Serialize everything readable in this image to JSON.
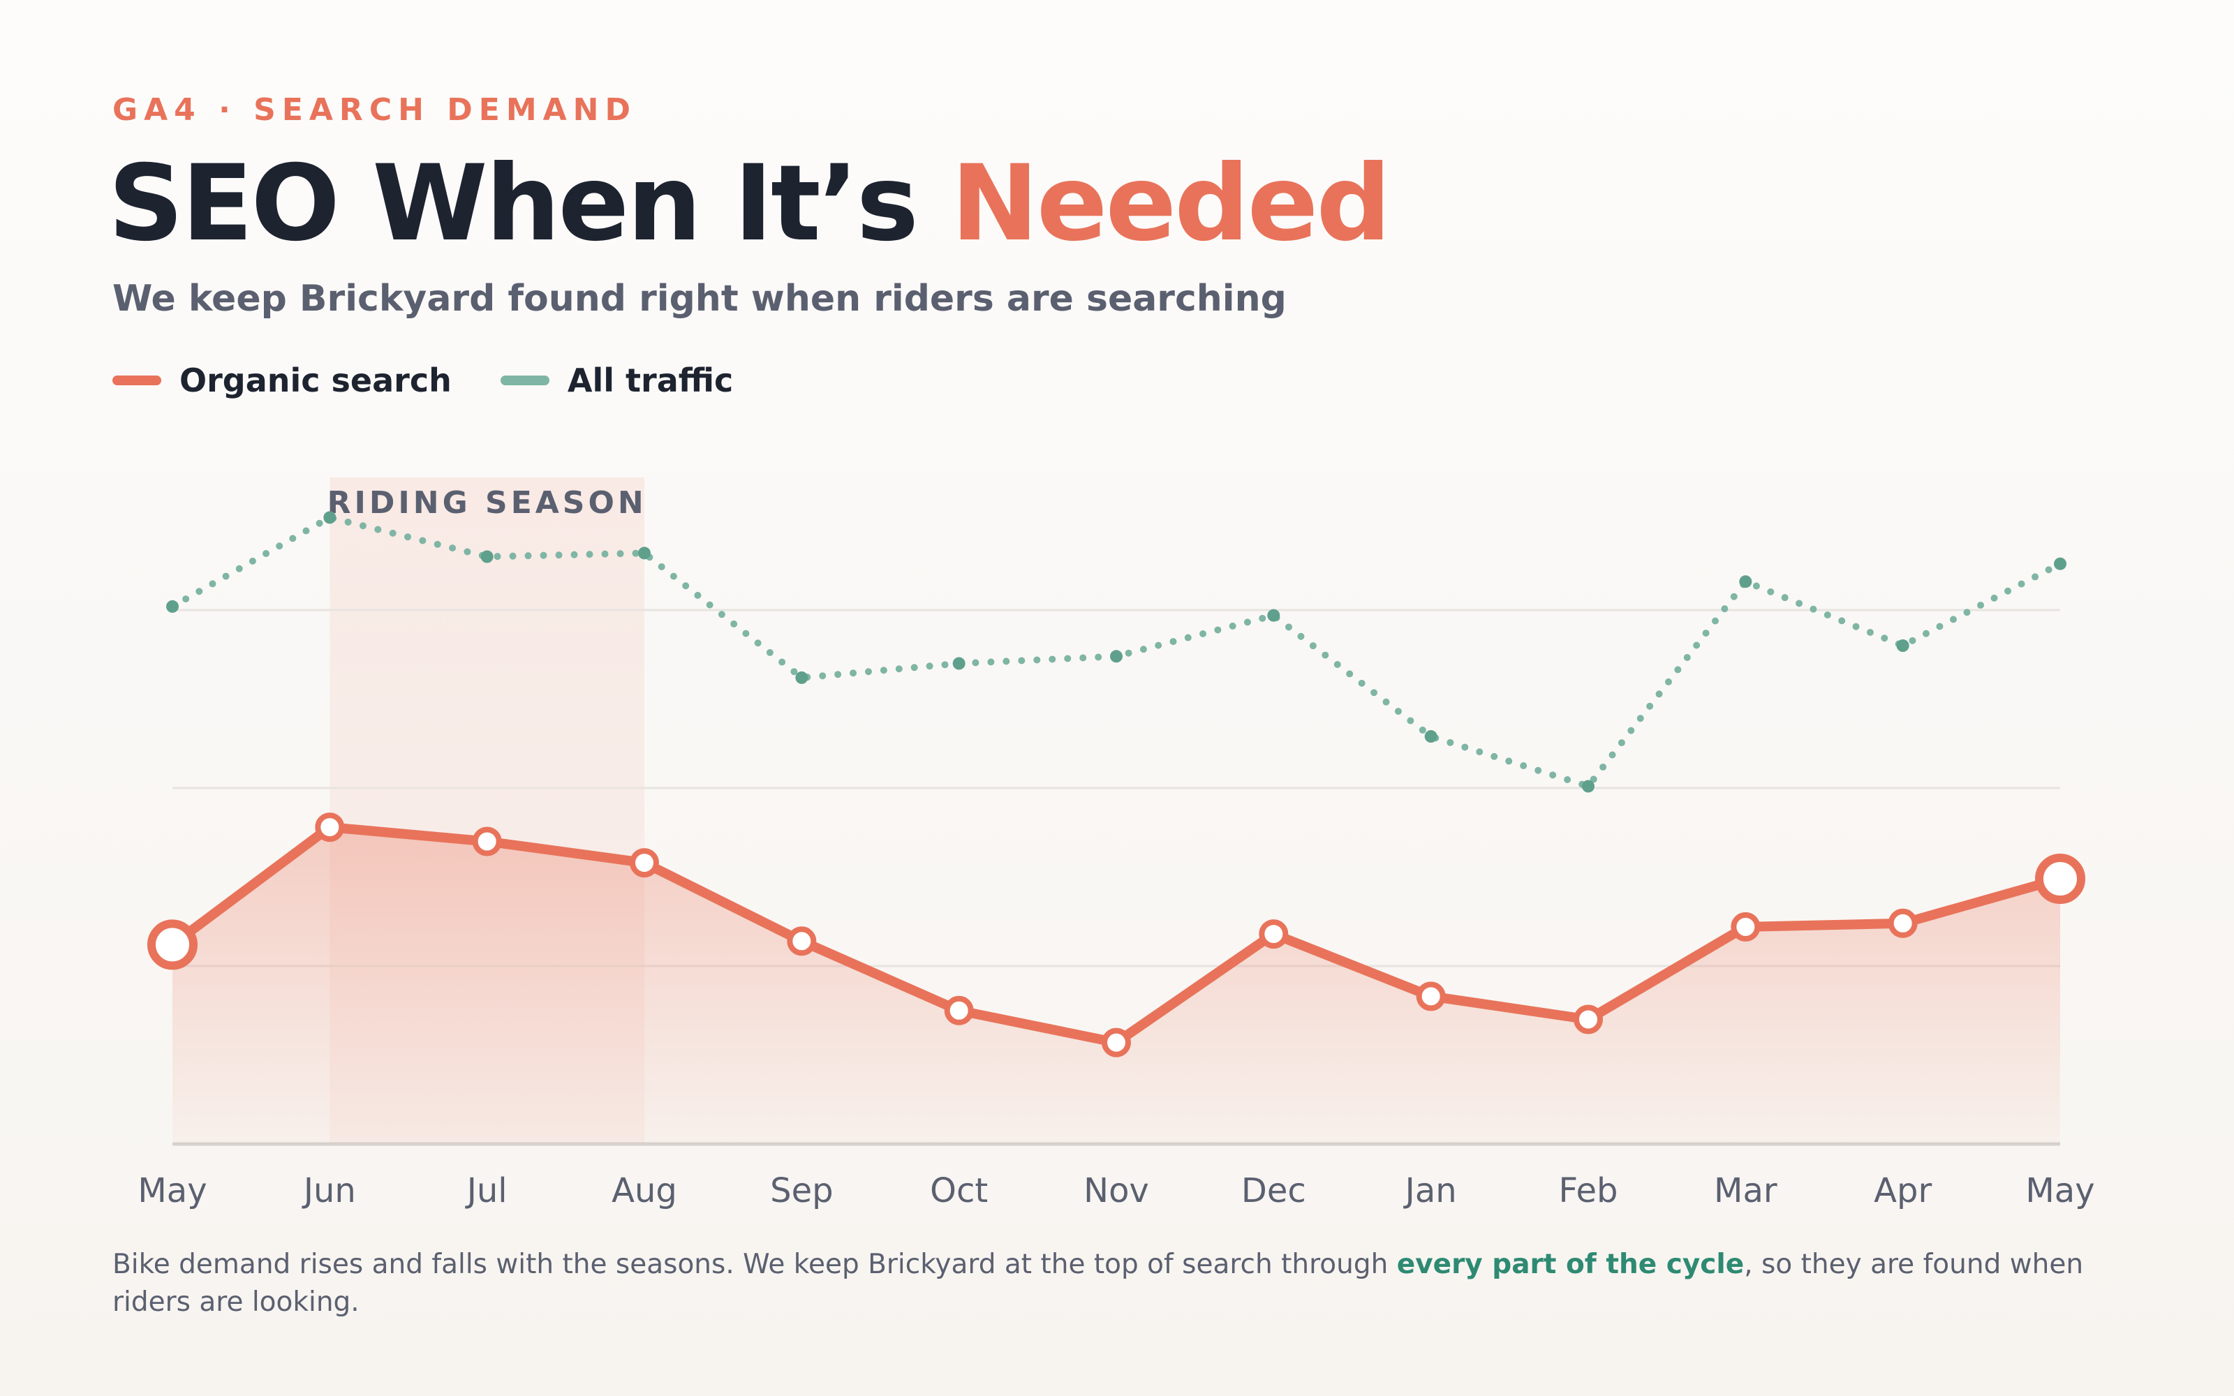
{
  "header": {
    "eyebrow": "GA4 · SEARCH DEMAND",
    "title": "SEO When It’s ",
    "title_accent": "Needed",
    "subtitle": "We keep Brickyard found right when riders are searching"
  },
  "chart_data": {
    "type": "line",
    "categories": [
      "May",
      "Jun",
      "Jul",
      "Aug",
      "Sep",
      "Oct",
      "Nov",
      "Dec",
      "Jan",
      "Feb",
      "Mar",
      "Apr",
      "May"
    ],
    "series": [
      {
        "name": "Organic search",
        "color": "#e8735a",
        "style": "solid",
        "area": true,
        "values": [
          1.12,
          1.78,
          1.7,
          1.58,
          1.14,
          0.75,
          0.57,
          1.18,
          0.83,
          0.7,
          1.22,
          1.24,
          1.49
        ]
      },
      {
        "name": "All traffic",
        "color": "#7fb5a5",
        "style": "dotted",
        "area": false,
        "values": [
          3.02,
          3.52,
          3.3,
          3.32,
          2.62,
          2.7,
          2.74,
          2.97,
          2.29,
          2.01,
          3.16,
          2.8,
          3.26
        ]
      }
    ],
    "ylim": [
      0,
      4
    ],
    "yticks": [
      0,
      1,
      2,
      3
    ],
    "grid": true,
    "band": {
      "label": "RIDING SEASON",
      "start": "Jun",
      "end": "Aug"
    }
  },
  "footnote": {
    "before": "Bike demand rises and falls with the seasons. We keep Brickyard at the top of search through ",
    "highlight": "every part of the cycle",
    "after": ", so they are found when riders are looking."
  }
}
